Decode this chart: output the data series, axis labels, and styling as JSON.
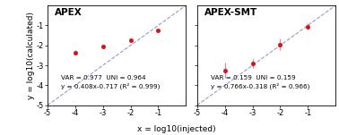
{
  "left_title": "APEX",
  "right_title": "APEX-SMT",
  "xlabel": "x = log10(injected)",
  "ylabel": "y = log10(calculated)",
  "xlim": [
    -5,
    0
  ],
  "ylim": [
    -5,
    0
  ],
  "xticks": [
    -5,
    -4,
    -3,
    -2,
    -1
  ],
  "yticks": [
    -5,
    -4,
    -3,
    -2,
    -1
  ],
  "xtick_labels": [
    "-5",
    "-4",
    "-3",
    "-2",
    "-1"
  ],
  "ytick_labels": [
    "-5",
    "-4",
    "-3",
    "-2",
    "-1"
  ],
  "left_points": {
    "x": [
      -4,
      -3,
      -2,
      -1
    ],
    "y": [
      -2.35,
      -2.05,
      -1.75,
      -1.25
    ],
    "yerr": [
      0.12,
      0.08,
      0.06,
      0.07
    ]
  },
  "right_points": {
    "x": [
      -4,
      -3,
      -2,
      -1
    ],
    "y": [
      -3.25,
      -2.9,
      -1.95,
      -1.05
    ],
    "yerr": [
      0.38,
      0.22,
      0.28,
      0.14
    ]
  },
  "left_annotation_line1": "VAR = 0.977  UNI = 0.964",
  "left_annotation_line2": "y = 0.408x-0.717 (R² = 0.999)",
  "right_annotation_line1": "VAR = 0.159  UNI = 0.159",
  "right_annotation_line2": "y = 0.766x-0.318 (R² = 0.966)",
  "point_color": "#dd1111",
  "error_color": "#dd88aa",
  "dash_color": "#9999cc",
  "bg_color": "#ffffff",
  "title_fontsize": 7.5,
  "label_fontsize": 6.5,
  "tick_fontsize": 6,
  "annot_fontsize": 5.2
}
